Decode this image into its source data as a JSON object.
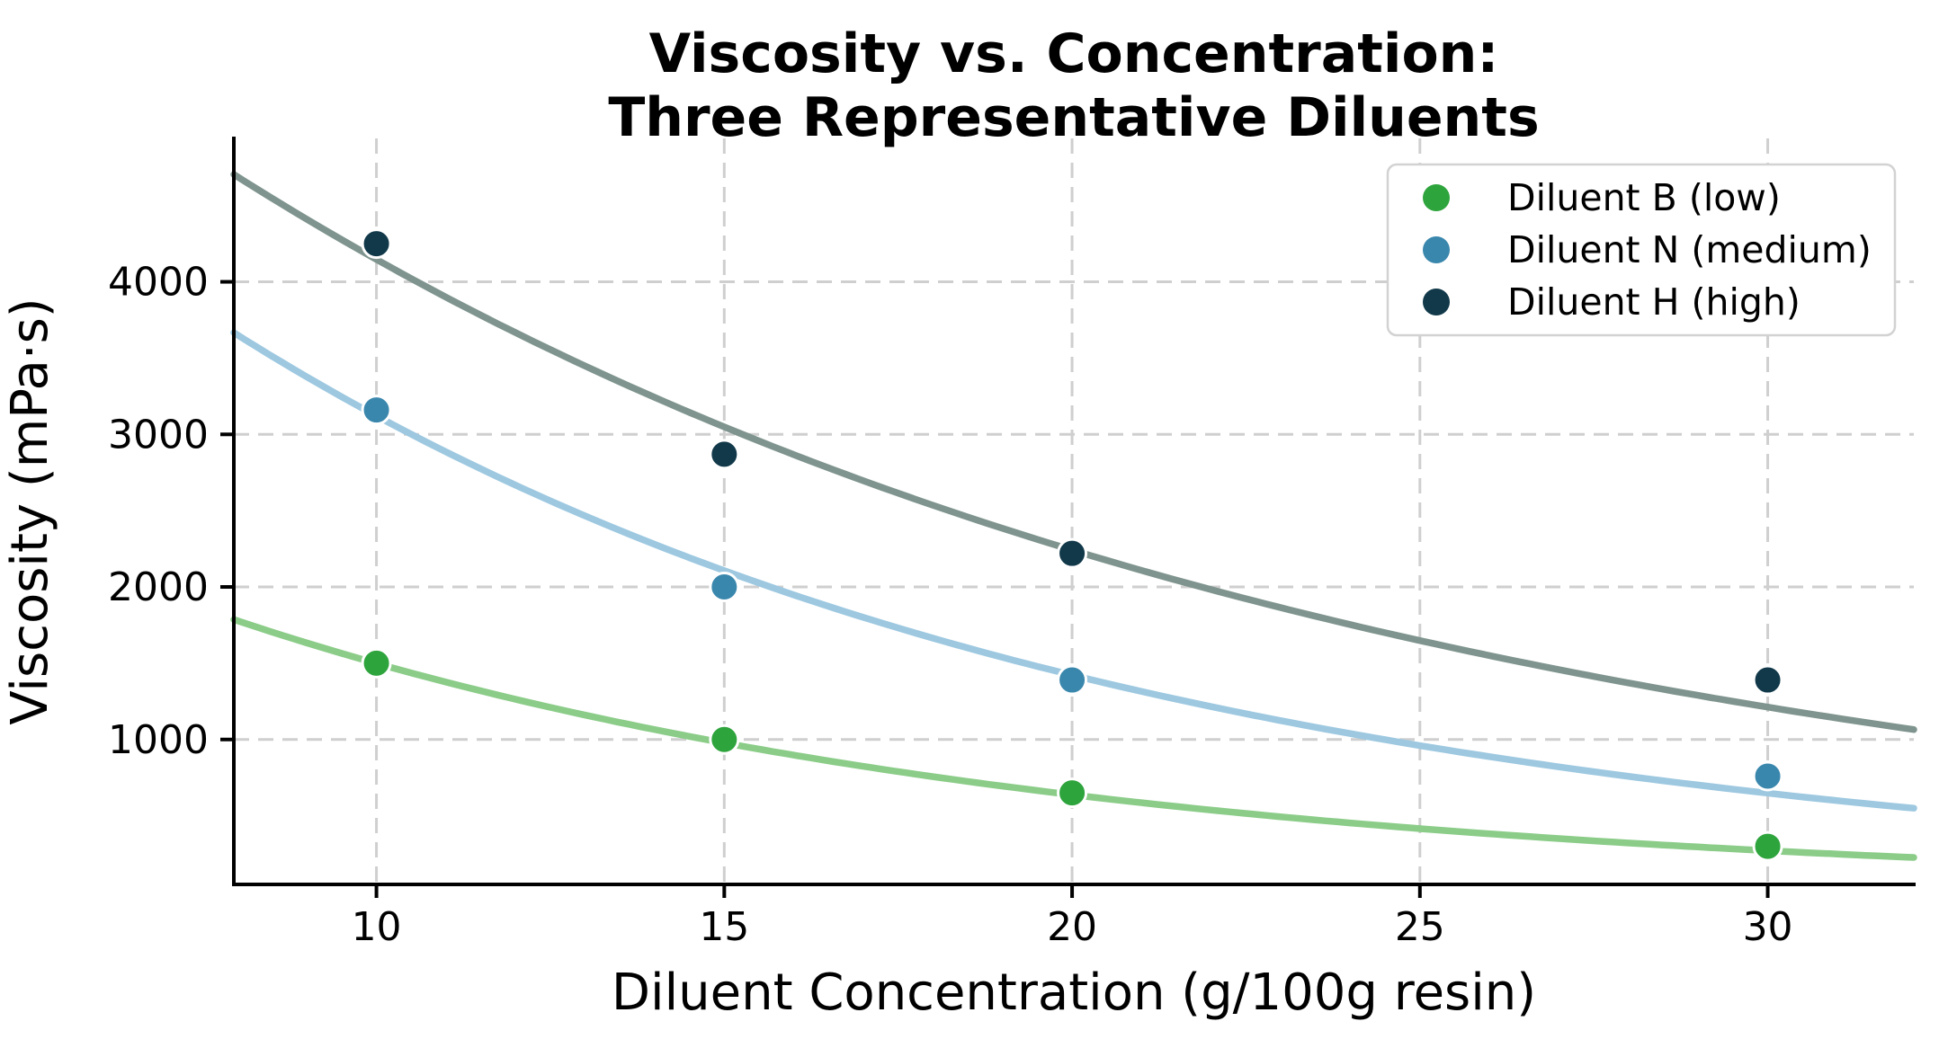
{
  "chart_data": {
    "type": "scatter",
    "title_lines": [
      "Viscosity vs. Concentration:",
      "Three Representative Diluents"
    ],
    "xlabel": "Diluent Concentration (g/100g resin)",
    "ylabel": "Viscosity (mPa·s)",
    "x": [
      10,
      15,
      20,
      30
    ],
    "series": [
      {
        "name": "Diluent B (low)",
        "values": [
          1500,
          1000,
          650,
          300
        ],
        "marker_color": "#2ea43d",
        "curve_color": "#8bcc88",
        "fit": {
          "type": "exponential",
          "A": 3525,
          "k": 0.0855
        }
      },
      {
        "name": "Diluent N (medium)",
        "values": [
          3160,
          2000,
          1390,
          760
        ],
        "marker_color": "#3a87ad",
        "curve_color": "#9dc8e0",
        "fit": {
          "type": "exponential",
          "A": 6850,
          "k": 0.0786
        }
      },
      {
        "name": "Diluent H (high)",
        "values": [
          4250,
          2870,
          2220,
          1390
        ],
        "marker_color": "#11394a",
        "curve_color": "#7f948e",
        "fit": {
          "type": "exponential",
          "A": 7670,
          "k": 0.0615
        }
      }
    ],
    "xlim": [
      7.95,
      32.1
    ],
    "ylim": [
      50,
      4940
    ],
    "xticks": [
      10,
      15,
      20,
      25,
      30
    ],
    "yticks": [
      1000,
      2000,
      3000,
      4000
    ],
    "xtick_labels": [
      "10",
      "15",
      "20",
      "25",
      "30"
    ],
    "ytick_labels": [
      "1000",
      "2000",
      "3000",
      "4000"
    ],
    "grid": true,
    "grid_style": "dashed",
    "grid_color": "#cfcfcf",
    "spine_color": "#000000",
    "background_color": "#ffffff",
    "legend_position": "upper right",
    "legend_border_color": "#d2d2d2"
  }
}
